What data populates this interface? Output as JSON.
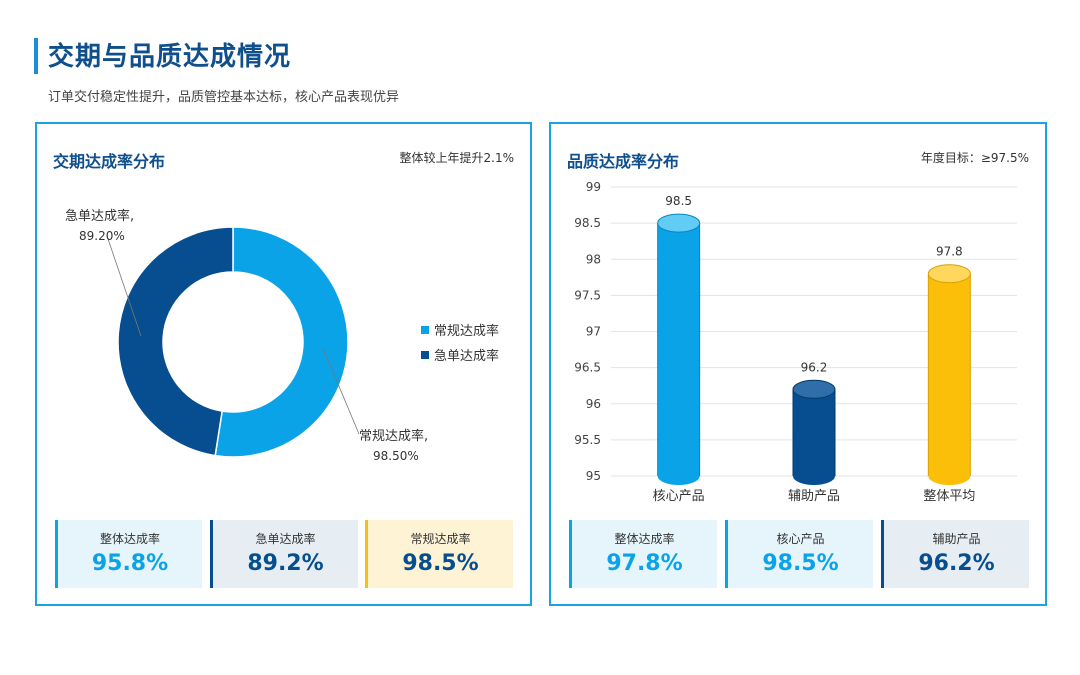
{
  "header": {
    "title": "交期与品质达成情况",
    "subtitle": "订单交付稳定性提升，品质管控基本达标，核心产品表现优异"
  },
  "left_panel": {
    "title": "交期达成率分布",
    "note": "整体较上年提升2.1%",
    "legend": [
      {
        "label": "常规达成率",
        "color": "#0aa3e8"
      },
      {
        "label": "急单达成率",
        "color": "#064e8f"
      }
    ],
    "callouts": {
      "urgent_name": "急单达成率,",
      "urgent_value": "89.20%",
      "regular_name": "常规达成率,",
      "regular_value": "98.50%"
    },
    "kpis": [
      {
        "label": "整体达成率",
        "value": "95.8%",
        "bg": "#e6f5fc",
        "border": "#0aa3e8",
        "color": "#0aa3e8"
      },
      {
        "label": "急单达成率",
        "value": "89.2%",
        "bg": "#e6eef3",
        "border": "#064e8f",
        "color": "#064e8f"
      },
      {
        "label": "常规达成率",
        "value": "98.5%",
        "bg": "#fff3d6",
        "border": "#f5bf1a",
        "color": "#064e8f"
      }
    ]
  },
  "right_panel": {
    "title": "品质达成率分布",
    "note": "年度目标：≥97.5%",
    "kpis": [
      {
        "label": "整体达成率",
        "value": "97.8%",
        "bg": "#e6f5fc",
        "border": "#0aa3e8",
        "color": "#0aa3e8"
      },
      {
        "label": "核心产品",
        "value": "98.5%",
        "bg": "#e6f5fc",
        "border": "#0aa3e8",
        "color": "#0aa3e8"
      },
      {
        "label": "辅助产品",
        "value": "96.2%",
        "bg": "#e6eef3",
        "border": "#064e8f",
        "color": "#064e8f"
      }
    ]
  },
  "chart_data": [
    {
      "type": "pie",
      "title": "交期达成率分布",
      "donut": true,
      "categories": [
        "常规达成率",
        "急单达成率"
      ],
      "values": [
        98.5,
        89.2
      ],
      "colors": [
        "#0aa3e8",
        "#064e8f"
      ],
      "legend_position": "right"
    },
    {
      "type": "bar",
      "title": "品质达成率分布",
      "style": "cylinder",
      "categories": [
        "核心产品",
        "辅助产品",
        "整体平均"
      ],
      "values": [
        98.5,
        96.2,
        97.8
      ],
      "colors": [
        "#0aa3e8",
        "#064e8f",
        "#fbbf0a"
      ],
      "ylim": [
        95,
        99
      ],
      "yticks": [
        "95",
        "95.5",
        "96",
        "96.5",
        "97",
        "97.5",
        "98",
        "98.5",
        "99"
      ],
      "grid": true
    }
  ]
}
